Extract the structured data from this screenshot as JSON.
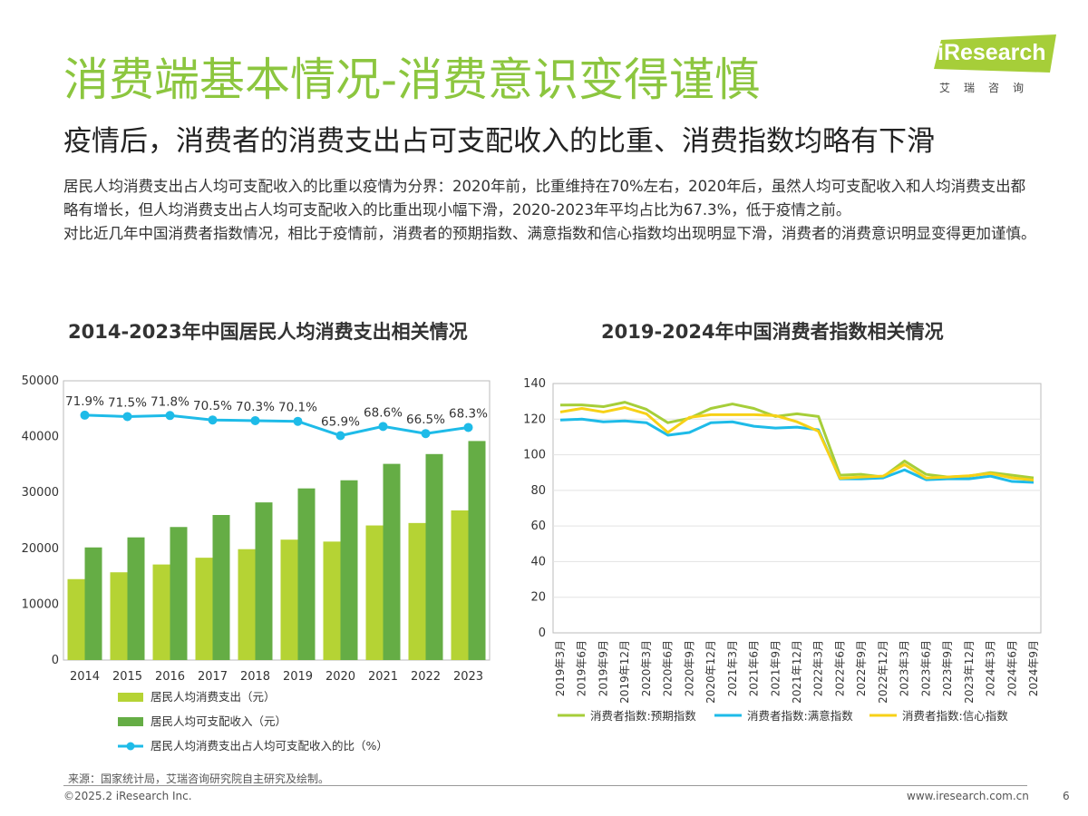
{
  "header": {
    "title": "消费端基本情况-消费意识变得谨慎",
    "subtitle": "疫情后，消费者的消费支出占可支配收入的比重、消费指数均略有下滑"
  },
  "logo": {
    "text": "iResearch",
    "cn": "艾瑞咨询",
    "color": "#a6ce39"
  },
  "intro": [
    "居民人均消费支出占人均可支配收入的比重以疫情为分界：2020年前，比重维持在70%左右，2020年后，虽然人均可支配收入和人均消费支出都略有增长，但人均消费支出占人均可支配收入的比重出现小幅下滑，2020-2023年平均占比为67.3%，低于疫情之前。",
    "对比近几年中国消费者指数情况，相比于疫情前，消费者的预期指数、满意指数和信心指数均出现明显下滑，消费者的消费意识明显变得更加谨慎。"
  ],
  "chart_data": [
    {
      "type": "bar",
      "title": "2014-2023年中国居民人均消费支出相关情况",
      "categories": [
        "2014",
        "2015",
        "2016",
        "2017",
        "2018",
        "2019",
        "2020",
        "2021",
        "2022",
        "2023"
      ],
      "ylim": [
        0,
        50000
      ],
      "yticks": [
        0,
        10000,
        20000,
        30000,
        40000,
        50000
      ],
      "series": [
        {
          "name": "居民人均消费支出（元）",
          "kind": "bar",
          "color": "#b5d334",
          "values": [
            14491,
            15712,
            17111,
            18322,
            19853,
            21559,
            21210,
            24100,
            24538,
            26796
          ]
        },
        {
          "name": "居民人均可支配收入（元）",
          "kind": "bar",
          "color": "#65ad45",
          "values": [
            20167,
            21966,
            23821,
            25974,
            28228,
            30733,
            32189,
            35128,
            36883,
            39218
          ]
        },
        {
          "name": "居民人均消费支出占人均可支配收入的比（%）",
          "kind": "line",
          "color": "#1ebbe8",
          "values": [
            71.9,
            71.5,
            71.8,
            70.5,
            70.3,
            70.1,
            65.9,
            68.6,
            66.5,
            68.3
          ],
          "labels": [
            "71.9%",
            "71.5%",
            "71.8%",
            "70.5%",
            "70.3%",
            "70.1%",
            "65.9%",
            "68.6%",
            "66.5%",
            "68.3%"
          ]
        }
      ],
      "grid": false,
      "legend": "bottom"
    },
    {
      "type": "line",
      "title": "2019-2024年中国消费者指数相关情况",
      "categories": [
        "2019年3月",
        "2019年6月",
        "2019年9月",
        "2019年12月",
        "2020年3月",
        "2020年6月",
        "2020年9月",
        "2020年12月",
        "2021年3月",
        "2021年6月",
        "2021年9月",
        "2021年12月",
        "2022年3月",
        "2022年6月",
        "2022年9月",
        "2022年12月",
        "2023年3月",
        "2023年6月",
        "2023年9月",
        "2023年12月",
        "2024年3月",
        "2024年6月",
        "2024年9月"
      ],
      "ylim": [
        0,
        140
      ],
      "yticks": [
        0,
        20,
        40,
        60,
        80,
        100,
        120,
        140
      ],
      "series": [
        {
          "name": "消费者指数:预期指数",
          "color": "#a6ce39",
          "values": [
            127.9,
            128,
            127,
            129.5,
            125.5,
            118,
            120.5,
            126,
            128.5,
            126,
            121.5,
            123,
            121.5,
            88.5,
            89,
            87.5,
            96.5,
            89,
            87.5,
            88,
            90,
            88.5,
            87
          ]
        },
        {
          "name": "消费者指数:满意指数",
          "color": "#1ebbe8",
          "values": [
            119.5,
            120,
            118.5,
            119,
            118,
            111,
            112.5,
            118,
            118.5,
            116,
            115,
            115.5,
            114,
            86.5,
            86.5,
            87,
            91.5,
            86,
            86.5,
            86.5,
            88,
            85,
            84.5
          ]
        },
        {
          "name": "消费者指数:信心指数",
          "color": "#f7d117",
          "values": [
            124,
            126,
            124,
            126.5,
            123,
            112.5,
            121,
            122.5,
            122.5,
            122.5,
            122,
            118.5,
            113.2,
            86.8,
            87.5,
            88,
            94.5,
            87,
            87.5,
            88.2,
            89.5,
            87,
            85.8
          ]
        }
      ],
      "grid": true,
      "legend": "bottom"
    }
  ],
  "footer": {
    "source": "来源：国家统计局，艾瑞咨询研究院自主研究及绘制。",
    "copyright": "©2025.2 iResearch Inc.",
    "url": "www.iresearch.com.cn",
    "page": "6"
  }
}
